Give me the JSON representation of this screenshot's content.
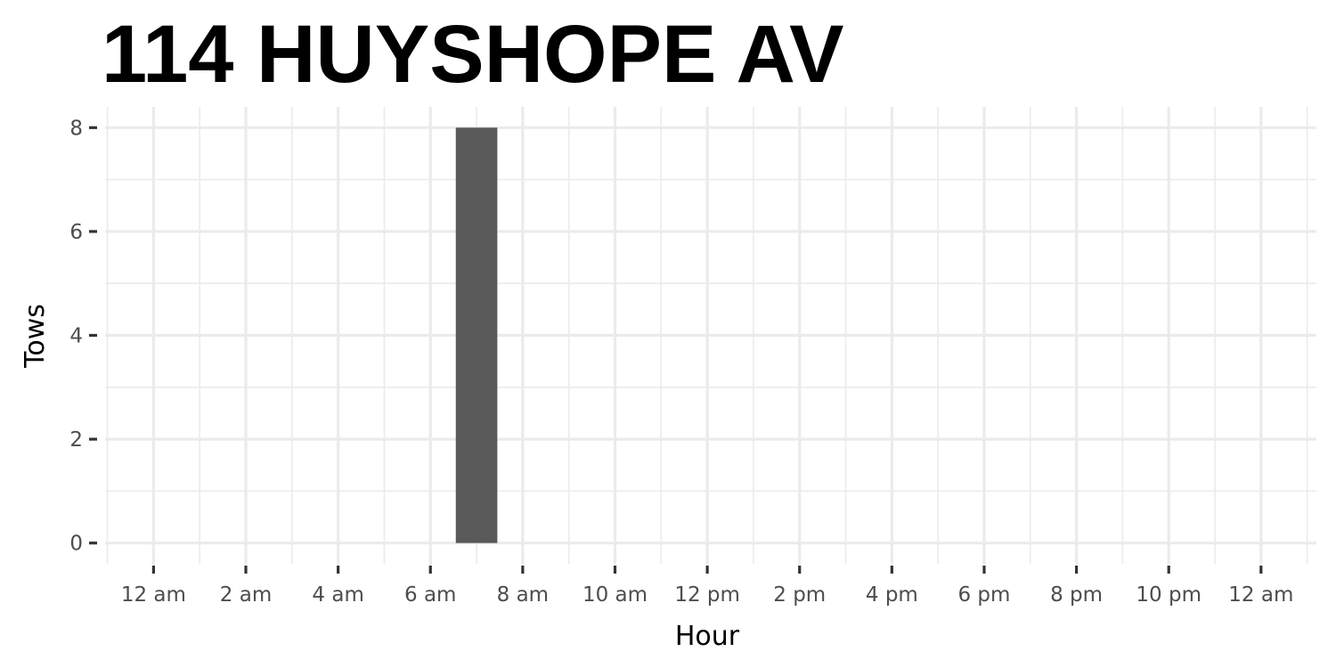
{
  "chart_data": {
    "type": "bar",
    "title": "114 HUYSHOPE AV",
    "xlabel": "Hour",
    "ylabel": "Tows",
    "x_ticks": [
      {
        "value": 0,
        "label": "12 am"
      },
      {
        "value": 2,
        "label": "2 am"
      },
      {
        "value": 4,
        "label": "4 am"
      },
      {
        "value": 6,
        "label": "6 am"
      },
      {
        "value": 8,
        "label": "8 am"
      },
      {
        "value": 10,
        "label": "10 am"
      },
      {
        "value": 12,
        "label": "12 pm"
      },
      {
        "value": 14,
        "label": "2 pm"
      },
      {
        "value": 16,
        "label": "4 pm"
      },
      {
        "value": 18,
        "label": "6 pm"
      },
      {
        "value": 20,
        "label": "8 pm"
      },
      {
        "value": 22,
        "label": "10 pm"
      },
      {
        "value": 24,
        "label": "12 am"
      }
    ],
    "y_ticks": [
      0,
      2,
      4,
      6,
      8
    ],
    "xlim": [
      -1.05,
      25.2
    ],
    "ylim": [
      -0.4,
      8.4
    ],
    "grid": true,
    "bar_color": "#595959",
    "grid_color": "#ebebeb",
    "bars": [
      {
        "x": 7,
        "value": 8
      }
    ]
  }
}
